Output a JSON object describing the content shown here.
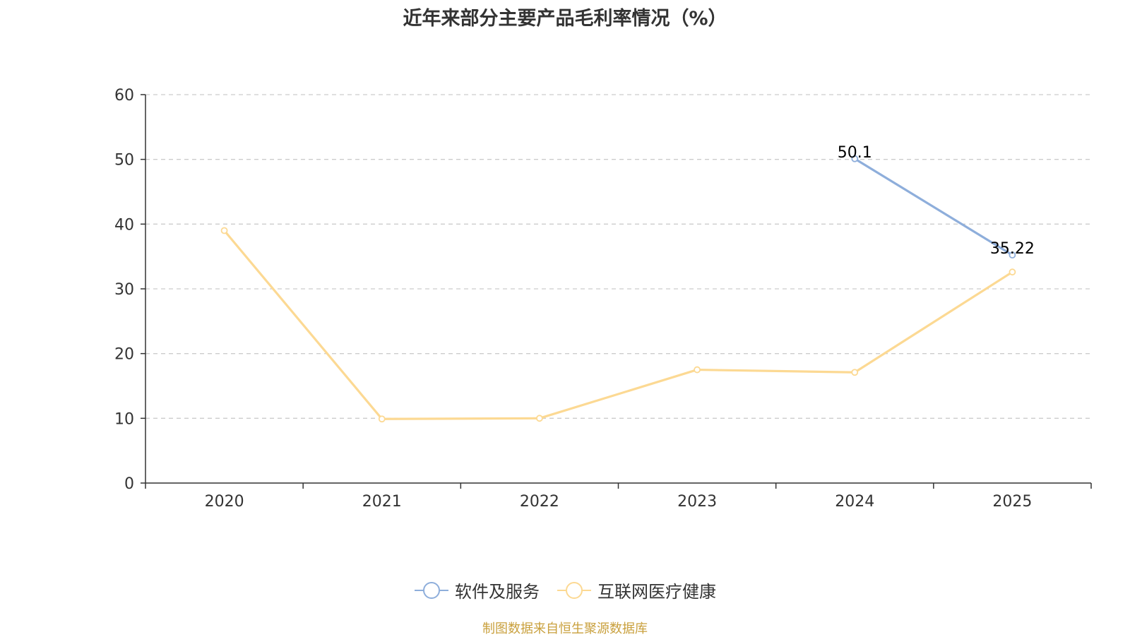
{
  "colors": {
    "software_services": "#8eaedb",
    "internet_medical": "#fcd993",
    "source_note": "#c9a03d",
    "axis": "#333333",
    "grid": "#cccccc"
  },
  "source_note": "制图数据来自恒生聚源数据库",
  "chart_data": {
    "type": "line",
    "title": "近年来部分主要产品毛利率情况（%）",
    "categories": [
      "2020",
      "2021",
      "2022",
      "2023",
      "2024",
      "2025"
    ],
    "ylim": [
      0,
      60
    ],
    "yticks": [
      0,
      10,
      20,
      30,
      40,
      50,
      60
    ],
    "grid": true,
    "legend_position": "bottom",
    "series": [
      {
        "name": "软件及服务",
        "color": "#8eaedb",
        "values": [
          null,
          null,
          null,
          null,
          50.1,
          35.22
        ],
        "labels": [
          null,
          null,
          null,
          null,
          "50.1",
          "35.22"
        ]
      },
      {
        "name": "互联网医疗健康",
        "color": "#fcd993",
        "values": [
          39.0,
          9.9,
          10.0,
          17.5,
          17.1,
          32.6
        ],
        "labels": [
          null,
          null,
          null,
          null,
          null,
          null
        ]
      }
    ]
  }
}
